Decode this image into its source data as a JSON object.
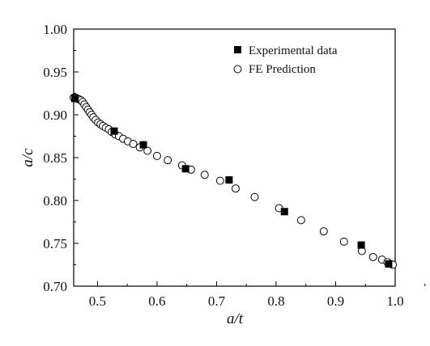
{
  "chart_data": {
    "type": "scatter",
    "xlabel": "a/t",
    "ylabel": "a/c",
    "xlim": [
      0.46,
      1.0
    ],
    "ylim": [
      0.7,
      1.0
    ],
    "x_ticks": [
      "0.5",
      "0.6",
      "0.7",
      "0.8",
      "0.9",
      "1.0"
    ],
    "y_ticks": [
      "0.70",
      "0.75",
      "0.80",
      "0.85",
      "0.90",
      "0.95",
      "1.00"
    ],
    "grid": false,
    "legend_position": "top-right",
    "series": [
      {
        "name": "Experimental data",
        "marker": "filled-square",
        "color": "#000000",
        "points": [
          [
            0.462,
            0.919
          ],
          [
            0.528,
            0.881
          ],
          [
            0.577,
            0.865
          ],
          [
            0.648,
            0.837
          ],
          [
            0.721,
            0.824
          ],
          [
            0.814,
            0.787
          ],
          [
            0.943,
            0.748
          ],
          [
            0.989,
            0.726
          ]
        ]
      },
      {
        "name": "FE Prediction",
        "marker": "open-circle",
        "color": "#000000",
        "points": [
          [
            0.46,
            0.92
          ],
          [
            0.463,
            0.92
          ],
          [
            0.466,
            0.919
          ],
          [
            0.469,
            0.918
          ],
          [
            0.472,
            0.917
          ],
          [
            0.475,
            0.915
          ],
          [
            0.478,
            0.912
          ],
          [
            0.481,
            0.909
          ],
          [
            0.484,
            0.906
          ],
          [
            0.487,
            0.903
          ],
          [
            0.49,
            0.9
          ],
          [
            0.493,
            0.897
          ],
          [
            0.497,
            0.894
          ],
          [
            0.501,
            0.891
          ],
          [
            0.505,
            0.889
          ],
          [
            0.509,
            0.887
          ],
          [
            0.514,
            0.885
          ],
          [
            0.519,
            0.883
          ],
          [
            0.524,
            0.88
          ],
          [
            0.53,
            0.877
          ],
          [
            0.536,
            0.875
          ],
          [
            0.543,
            0.872
          ],
          [
            0.551,
            0.869
          ],
          [
            0.56,
            0.866
          ],
          [
            0.571,
            0.862
          ],
          [
            0.584,
            0.858
          ],
          [
            0.6,
            0.852
          ],
          [
            0.618,
            0.847
          ],
          [
            0.642,
            0.841
          ],
          [
            0.657,
            0.836
          ],
          [
            0.68,
            0.83
          ],
          [
            0.706,
            0.823
          ],
          [
            0.732,
            0.814
          ],
          [
            0.764,
            0.804
          ],
          [
            0.805,
            0.791
          ],
          [
            0.842,
            0.777
          ],
          [
            0.88,
            0.764
          ],
          [
            0.914,
            0.752
          ],
          [
            0.944,
            0.741
          ],
          [
            0.963,
            0.734
          ],
          [
            0.978,
            0.731
          ],
          [
            0.987,
            0.728
          ],
          [
            0.992,
            0.726
          ],
          [
            0.996,
            0.725
          ]
        ]
      }
    ]
  }
}
